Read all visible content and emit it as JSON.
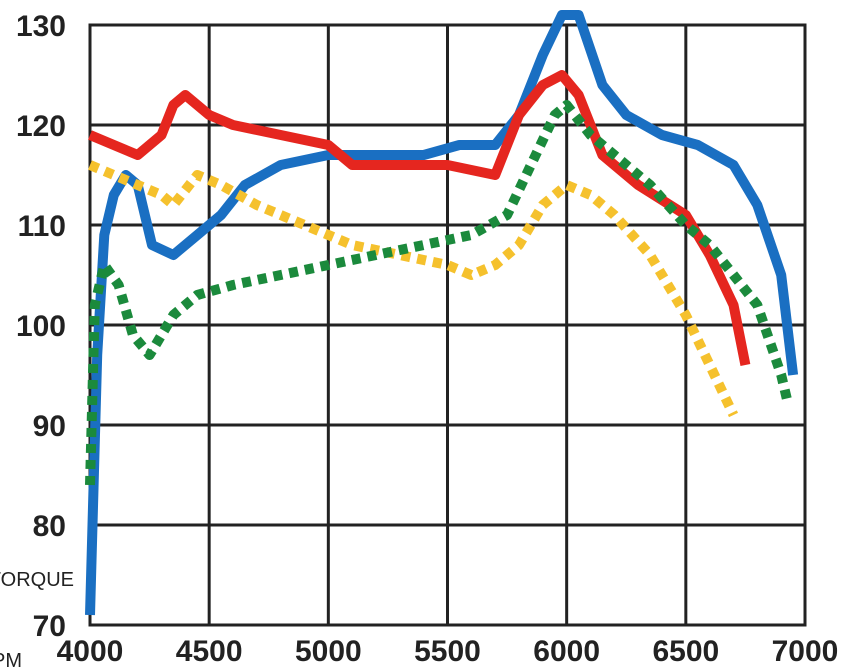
{
  "chart_data": {
    "type": "line",
    "xlabel": "RPM",
    "ylabel": "TORQUE",
    "xlim": [
      4000,
      7000
    ],
    "ylim": [
      70,
      130
    ],
    "x_ticks": [
      "4000",
      "4500",
      "5000",
      "5500",
      "6000",
      "6500",
      "7000"
    ],
    "y_ticks": [
      "70",
      "80",
      "90",
      "100",
      "110",
      "120",
      "130"
    ],
    "grid": true,
    "series": [
      {
        "color": "#1a6fc2",
        "style": "solid",
        "points": [
          [
            4000,
            71
          ],
          [
            4030,
            97
          ],
          [
            4060,
            109
          ],
          [
            4100,
            113
          ],
          [
            4150,
            115
          ],
          [
            4200,
            114
          ],
          [
            4260,
            108
          ],
          [
            4350,
            107
          ],
          [
            4450,
            109
          ],
          [
            4550,
            111
          ],
          [
            4650,
            114
          ],
          [
            4800,
            116
          ],
          [
            5000,
            117
          ],
          [
            5200,
            117
          ],
          [
            5400,
            117
          ],
          [
            5550,
            118
          ],
          [
            5700,
            118
          ],
          [
            5800,
            121
          ],
          [
            5900,
            127
          ],
          [
            5980,
            131
          ],
          [
            6050,
            131
          ],
          [
            6150,
            124
          ],
          [
            6250,
            121
          ],
          [
            6400,
            119
          ],
          [
            6550,
            118
          ],
          [
            6700,
            116
          ],
          [
            6800,
            112
          ],
          [
            6900,
            105
          ],
          [
            6950,
            95
          ]
        ]
      },
      {
        "color": "#e5261f",
        "style": "solid",
        "points": [
          [
            4000,
            119
          ],
          [
            4100,
            118
          ],
          [
            4200,
            117
          ],
          [
            4300,
            119
          ],
          [
            4350,
            122
          ],
          [
            4400,
            123
          ],
          [
            4500,
            121
          ],
          [
            4600,
            120
          ],
          [
            4800,
            119
          ],
          [
            5000,
            118
          ],
          [
            5100,
            116
          ],
          [
            5300,
            116
          ],
          [
            5500,
            116
          ],
          [
            5700,
            115
          ],
          [
            5800,
            121
          ],
          [
            5900,
            124
          ],
          [
            5980,
            125
          ],
          [
            6050,
            123
          ],
          [
            6150,
            117
          ],
          [
            6300,
            114
          ],
          [
            6500,
            111
          ],
          [
            6600,
            107
          ],
          [
            6700,
            102
          ],
          [
            6750,
            96
          ]
        ]
      },
      {
        "color": "#f5c12d",
        "style": "dotted",
        "points": [
          [
            4000,
            116
          ],
          [
            4100,
            115
          ],
          [
            4200,
            114
          ],
          [
            4300,
            113
          ],
          [
            4350,
            112
          ],
          [
            4450,
            115
          ],
          [
            4550,
            114
          ],
          [
            4700,
            112
          ],
          [
            4900,
            110
          ],
          [
            5100,
            108
          ],
          [
            5300,
            107
          ],
          [
            5500,
            106
          ],
          [
            5600,
            105
          ],
          [
            5700,
            106
          ],
          [
            5800,
            108
          ],
          [
            5900,
            112
          ],
          [
            6000,
            114
          ],
          [
            6100,
            113
          ],
          [
            6200,
            111
          ],
          [
            6350,
            107
          ],
          [
            6500,
            101
          ],
          [
            6600,
            96
          ],
          [
            6700,
            91
          ]
        ]
      },
      {
        "color": "#1b8a3c",
        "style": "dotted",
        "points": [
          [
            4000,
            84
          ],
          [
            4020,
            102
          ],
          [
            4060,
            106
          ],
          [
            4120,
            104
          ],
          [
            4180,
            99
          ],
          [
            4250,
            97
          ],
          [
            4300,
            99
          ],
          [
            4350,
            101
          ],
          [
            4450,
            103
          ],
          [
            4600,
            104
          ],
          [
            4800,
            105
          ],
          [
            5000,
            106
          ],
          [
            5200,
            107
          ],
          [
            5400,
            108
          ],
          [
            5600,
            109
          ],
          [
            5750,
            111
          ],
          [
            5850,
            116
          ],
          [
            5950,
            121
          ],
          [
            6000,
            122
          ],
          [
            6100,
            119
          ],
          [
            6200,
            117
          ],
          [
            6350,
            114
          ],
          [
            6500,
            110
          ],
          [
            6600,
            108
          ],
          [
            6700,
            105
          ],
          [
            6800,
            102
          ],
          [
            6900,
            95
          ],
          [
            6930,
            92
          ]
        ]
      }
    ]
  }
}
